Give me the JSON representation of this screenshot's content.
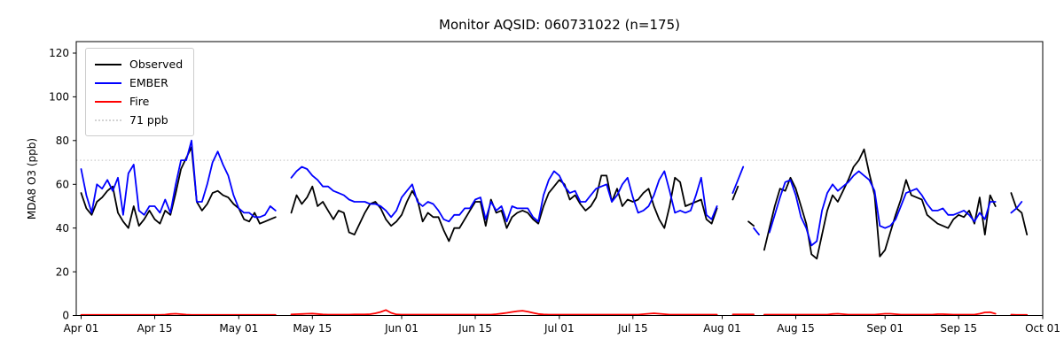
{
  "title": "Monitor AQSID: 060731022 (n=175)",
  "chart_data": {
    "type": "line",
    "title": "Monitor AQSID: 060731022 (n=175)",
    "xlabel": "",
    "ylabel": "MDA8 O3 (ppb)",
    "ylim": [
      0,
      125
    ],
    "grid": false,
    "x_is_dates": true,
    "x_range": [
      "Apr 01",
      "Oct 01"
    ],
    "n_points_label": "n=175",
    "x_ticks": [
      {
        "label": "Apr 01",
        "day": 0
      },
      {
        "label": "Apr 15",
        "day": 14
      },
      {
        "label": "May 01",
        "day": 30
      },
      {
        "label": "May 15",
        "day": 44
      },
      {
        "label": "Jun 01",
        "day": 61
      },
      {
        "label": "Jun 15",
        "day": 75
      },
      {
        "label": "Jul 01",
        "day": 91
      },
      {
        "label": "Jul 15",
        "day": 105
      },
      {
        "label": "Aug 01",
        "day": 122
      },
      {
        "label": "Aug 15",
        "day": 136
      },
      {
        "label": "Sep 01",
        "day": 153
      },
      {
        "label": "Sep 15",
        "day": 167
      },
      {
        "label": "Oct 01",
        "day": 183
      }
    ],
    "y_ticks": [
      0,
      20,
      40,
      60,
      80,
      100,
      120
    ],
    "threshold": {
      "value": 71,
      "label": "71 ppb",
      "color": "#d3d3d3",
      "style": "dotted"
    },
    "legend": {
      "position": "upper left",
      "entries": [
        {
          "label": "Observed",
          "color": "#000000",
          "style": "solid"
        },
        {
          "label": "EMBER",
          "color": "#0000ff",
          "style": "solid"
        },
        {
          "label": "Fire",
          "color": "#ff0000",
          "style": "solid"
        },
        {
          "label": "71 ppb",
          "color": "#d3d3d3",
          "style": "dotted"
        }
      ]
    },
    "series": [
      {
        "name": "Observed",
        "color": "#000000",
        "values": [
          56,
          49,
          46,
          52,
          54,
          57,
          59,
          47,
          43,
          40,
          50,
          41,
          44,
          48,
          44,
          42,
          48,
          46,
          56,
          67,
          72,
          77,
          52,
          48,
          51,
          56,
          57,
          55,
          54,
          51,
          49,
          44,
          43,
          47,
          42,
          43,
          44,
          45,
          null,
          null,
          47,
          55,
          51,
          54,
          59,
          50,
          52,
          48,
          44,
          48,
          47,
          38,
          37,
          42,
          47,
          51,
          52,
          49,
          44,
          41,
          43,
          46,
          52,
          57,
          53,
          43,
          47,
          45,
          45,
          39,
          34,
          40,
          40,
          44,
          48,
          52,
          52,
          41,
          53,
          47,
          48,
          40,
          45,
          47,
          48,
          47,
          44,
          42,
          50,
          56,
          59,
          62,
          60,
          53,
          55,
          51,
          48,
          50,
          54,
          64,
          64,
          52,
          58,
          50,
          53,
          52,
          53,
          56,
          58,
          50,
          44,
          40,
          50,
          63,
          61,
          50,
          51,
          52,
          53,
          44,
          42,
          49,
          null,
          null,
          53,
          59,
          null,
          43,
          41,
          null,
          30,
          40,
          50,
          58,
          57,
          63,
          58,
          50,
          42,
          28,
          26,
          37,
          48,
          55,
          52,
          57,
          62,
          68,
          71,
          76,
          65,
          55,
          27,
          30,
          38,
          46,
          53,
          62,
          55,
          54,
          53,
          46,
          44,
          42,
          41,
          40,
          44,
          46,
          45,
          48,
          42,
          54,
          37,
          55,
          50,
          null,
          null,
          56,
          49,
          47,
          37,
          null,
          null
        ]
      },
      {
        "name": "EMBER",
        "color": "#0000ff",
        "values": [
          67,
          55,
          47,
          60,
          58,
          62,
          57,
          63,
          46,
          65,
          69,
          48,
          46,
          50,
          50,
          47,
          53,
          47,
          60,
          71,
          71,
          80,
          52,
          52,
          60,
          70,
          75,
          69,
          64,
          55,
          49,
          47,
          47,
          45,
          45,
          46,
          50,
          48,
          null,
          null,
          63,
          66,
          68,
          67,
          64,
          62,
          59,
          59,
          57,
          56,
          55,
          53,
          52,
          52,
          52,
          51,
          51,
          50,
          48,
          45,
          48,
          54,
          57,
          60,
          52,
          50,
          52,
          51,
          48,
          44,
          43,
          46,
          46,
          49,
          49,
          53,
          54,
          44,
          52,
          48,
          50,
          43,
          50,
          49,
          49,
          49,
          45,
          43,
          55,
          62,
          66,
          64,
          59,
          56,
          57,
          52,
          52,
          55,
          58,
          59,
          60,
          52,
          55,
          60,
          63,
          54,
          47,
          48,
          50,
          55,
          62,
          66,
          57,
          47,
          48,
          47,
          48,
          55,
          63,
          46,
          44,
          50,
          null,
          null,
          56,
          62,
          68,
          null,
          40,
          37,
          null,
          38,
          46,
          54,
          61,
          62,
          55,
          45,
          40,
          32,
          34,
          48,
          56,
          60,
          57,
          59,
          61,
          64,
          66,
          64,
          62,
          57,
          41,
          40,
          41,
          44,
          50,
          56,
          57,
          58,
          55,
          51,
          48,
          48,
          49,
          46,
          46,
          47,
          48,
          46,
          43,
          47,
          44,
          52,
          52,
          null,
          null,
          47,
          49,
          52,
          null,
          null,
          null
        ]
      },
      {
        "name": "Fire",
        "color": "#ff0000",
        "values": [
          0.3,
          0.3,
          0.3,
          0.3,
          0.3,
          0.3,
          0.3,
          0.3,
          0.3,
          0.3,
          0.3,
          0.3,
          0.3,
          0.3,
          0.3,
          0.3,
          0.4,
          0.7,
          0.8,
          0.6,
          0.4,
          0.3,
          0.3,
          0.3,
          0.3,
          0.3,
          0.3,
          0.3,
          0.3,
          0.3,
          0.3,
          0.3,
          0.3,
          0.3,
          0.3,
          0.3,
          0.3,
          0.3,
          null,
          null,
          0.5,
          0.6,
          0.7,
          0.8,
          0.9,
          0.7,
          0.5,
          0.4,
          0.4,
          0.4,
          0.4,
          0.4,
          0.5,
          0.5,
          0.5,
          0.6,
          1.0,
          1.6,
          2.5,
          1.2,
          0.5,
          0.4,
          0.4,
          0.4,
          0.4,
          0.4,
          0.4,
          0.4,
          0.4,
          0.4,
          0.4,
          0.4,
          0.4,
          0.4,
          0.4,
          0.4,
          0.4,
          0.4,
          0.4,
          0.6,
          0.9,
          1.2,
          1.6,
          2.0,
          2.2,
          1.8,
          1.2,
          0.7,
          0.5,
          0.4,
          0.4,
          0.4,
          0.4,
          0.4,
          0.4,
          0.4,
          0.4,
          0.4,
          0.4,
          0.4,
          0.4,
          0.4,
          0.4,
          0.4,
          0.4,
          0.4,
          0.4,
          0.6,
          0.8,
          1.0,
          0.8,
          0.6,
          0.4,
          0.4,
          0.4,
          0.4,
          0.4,
          0.4,
          0.4,
          0.4,
          0.4,
          0.4,
          null,
          null,
          0.5,
          0.5,
          0.5,
          0.5,
          0.5,
          null,
          0.4,
          0.4,
          0.4,
          0.4,
          0.4,
          0.4,
          0.4,
          0.4,
          0.4,
          0.4,
          0.4,
          0.4,
          0.4,
          0.7,
          0.8,
          0.6,
          0.4,
          0.4,
          0.4,
          0.4,
          0.4,
          0.4,
          0.6,
          0.8,
          0.8,
          0.6,
          0.4,
          0.4,
          0.4,
          0.4,
          0.4,
          0.4,
          0.4,
          0.6,
          0.6,
          0.5,
          0.4,
          0.4,
          0.4,
          0.4,
          0.4,
          0.8,
          1.4,
          1.5,
          0.8,
          null,
          null,
          0.4,
          0.3,
          0.3,
          0.3,
          null,
          null
        ]
      }
    ]
  }
}
